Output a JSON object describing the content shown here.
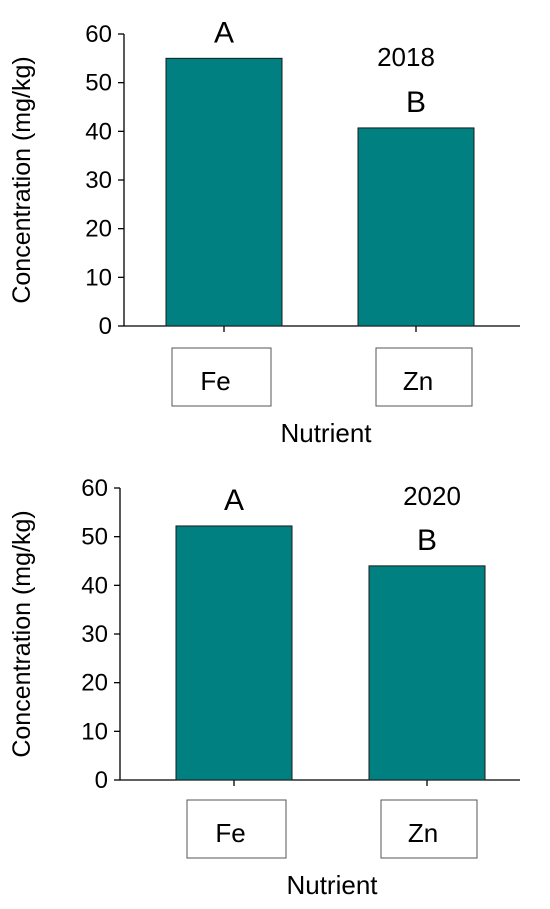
{
  "colors": {
    "bar": "#008080",
    "bar_stroke": "#1a1a1a",
    "axis": "#000000",
    "label_box": "#ffffff"
  },
  "chart_data": [
    {
      "type": "bar",
      "title": "2018",
      "categories": [
        "Fe",
        "Zn"
      ],
      "values": [
        55,
        40.7
      ],
      "letters": [
        "A",
        "B"
      ],
      "xlabel": "Nutrient",
      "ylabel": "Concentration (mg/kg)",
      "ylim": [
        0,
        60
      ],
      "yticks": [
        "0",
        "10",
        "20",
        "30",
        "40",
        "50",
        "60"
      ],
      "grid": false
    },
    {
      "type": "bar",
      "title": "2020",
      "categories": [
        "Fe",
        "Zn"
      ],
      "values": [
        52.2,
        44
      ],
      "letters": [
        "A",
        "B"
      ],
      "xlabel": "Nutrient",
      "ylabel": "Concentration (mg/kg)",
      "ylim": [
        0,
        60
      ],
      "yticks": [
        "0",
        "10",
        "20",
        "30",
        "40",
        "50",
        "60"
      ],
      "grid": false
    }
  ]
}
